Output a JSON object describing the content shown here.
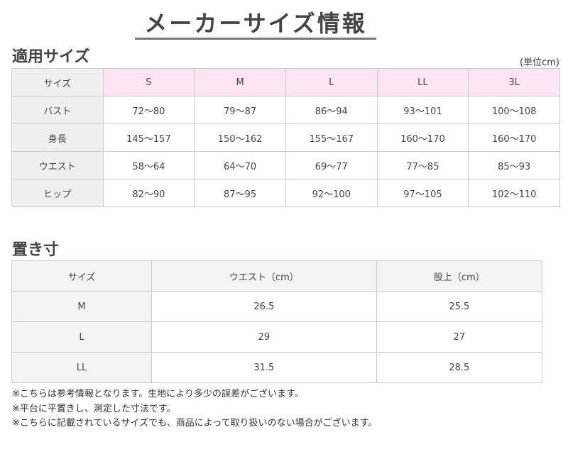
{
  "title": "メーカーサイズ情報",
  "section1": {
    "heading": "適用サイズ",
    "unit": "(単位cm)",
    "header": [
      "サイズ",
      "S",
      "M",
      "L",
      "LL",
      "3L"
    ],
    "rows": [
      [
        "バスト",
        "72〜80",
        "79〜87",
        "86〜94",
        "93〜101",
        "100〜108"
      ],
      [
        "身長",
        "145〜157",
        "150〜162",
        "155〜167",
        "160〜170",
        "160〜170"
      ],
      [
        "ウエスト",
        "58〜64",
        "64〜70",
        "69〜77",
        "77〜85",
        "85〜93"
      ],
      [
        "ヒップ",
        "82〜90",
        "87〜95",
        "92〜100",
        "97〜105",
        "102〜110"
      ]
    ]
  },
  "section2": {
    "heading": "置き寸",
    "header": [
      "サイズ",
      "ウエスト（cm）",
      "股上（cm）"
    ],
    "rows": [
      [
        "M",
        "26.5",
        "25.5"
      ],
      [
        "L",
        "29",
        "27"
      ],
      [
        "LL",
        "31.5",
        "28.5"
      ]
    ]
  },
  "notes": [
    "※こちらは参考情報となります。生地により多少の誤差がございます。",
    "※平台に平置きし、測定した寸法です。",
    "※こちらに記載されているサイズでも、商品によって取り扱いのない場合がございます。"
  ],
  "colors": {
    "header_pink": "#fce4f2",
    "header_gray": "#efefef"
  }
}
